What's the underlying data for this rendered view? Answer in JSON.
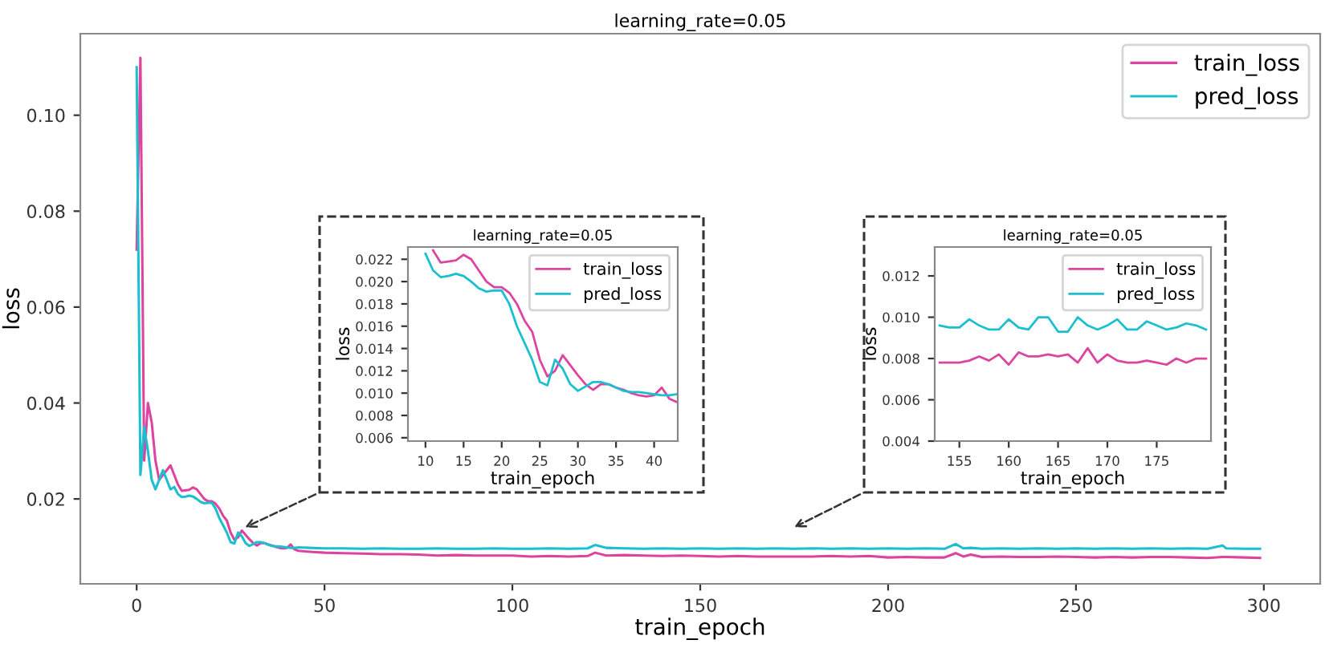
{
  "chart_data": [
    {
      "type": "line",
      "title": "learning_rate=0.05",
      "xlabel": "train_epoch",
      "ylabel": "loss",
      "legend": "top right",
      "grid": false,
      "x": [
        0,
        1,
        2,
        3,
        4,
        5,
        6,
        7,
        8,
        9,
        10,
        11,
        12,
        13,
        14,
        15,
        16,
        17,
        18,
        19,
        20,
        21,
        22,
        23,
        24,
        25,
        26,
        27,
        28,
        29,
        30,
        31,
        32,
        33,
        34,
        35,
        36,
        37,
        38,
        39,
        40,
        41,
        42,
        43,
        46,
        50,
        55,
        60,
        65,
        70,
        75,
        80,
        85,
        90,
        95,
        100,
        105,
        110,
        115,
        120,
        122,
        125,
        130,
        135,
        140,
        145,
        150,
        155,
        160,
        165,
        170,
        175,
        180,
        185,
        190,
        195,
        200,
        205,
        210,
        215,
        218,
        220,
        222,
        225,
        230,
        235,
        240,
        245,
        250,
        255,
        260,
        265,
        270,
        275,
        280,
        285,
        289,
        290,
        295,
        299
      ],
      "series": [
        {
          "name": "train_loss",
          "color": "#dc44a0",
          "values": [
            0.072,
            0.112,
            0.028,
            0.04,
            0.036,
            0.028,
            0.024,
            0.025,
            0.026,
            0.027,
            0.025,
            0.023,
            0.0217,
            0.0218,
            0.0219,
            0.0224,
            0.022,
            0.021,
            0.02,
            0.0195,
            0.0195,
            0.019,
            0.018,
            0.0165,
            0.0155,
            0.013,
            0.0115,
            0.012,
            0.0134,
            0.0125,
            0.0116,
            0.0108,
            0.0103,
            0.0108,
            0.0108,
            0.0105,
            0.0103,
            0.01,
            0.0098,
            0.0097,
            0.0098,
            0.0105,
            0.0095,
            0.0092,
            0.009,
            0.0088,
            0.0087,
            0.0086,
            0.0085,
            0.0085,
            0.0084,
            0.0082,
            0.0083,
            0.0082,
            0.0082,
            0.0082,
            0.008,
            0.0081,
            0.008,
            0.0081,
            0.0088,
            0.0082,
            0.0083,
            0.0082,
            0.0081,
            0.0082,
            0.0081,
            0.008,
            0.0081,
            0.008,
            0.008,
            0.008,
            0.008,
            0.0081,
            0.008,
            0.0081,
            0.0078,
            0.0079,
            0.0078,
            0.0078,
            0.0087,
            0.008,
            0.0084,
            0.0079,
            0.008,
            0.0079,
            0.0079,
            0.008,
            0.0079,
            0.0078,
            0.0079,
            0.0078,
            0.0079,
            0.0079,
            0.0078,
            0.0077,
            0.0079,
            0.0079,
            0.0078,
            0.0077
          ]
        },
        {
          "name": "pred_loss",
          "color": "#1cbfcf",
          "values": [
            0.11,
            0.025,
            0.035,
            0.03,
            0.024,
            0.022,
            0.024,
            0.026,
            0.024,
            0.022,
            0.0225,
            0.021,
            0.0204,
            0.0205,
            0.0207,
            0.0205,
            0.02,
            0.0194,
            0.0191,
            0.0192,
            0.0192,
            0.018,
            0.016,
            0.0145,
            0.013,
            0.011,
            0.0107,
            0.013,
            0.0122,
            0.0108,
            0.0102,
            0.0106,
            0.011,
            0.011,
            0.0108,
            0.0105,
            0.0102,
            0.0101,
            0.0101,
            0.01,
            0.0099,
            0.0098,
            0.0098,
            0.0099,
            0.0098,
            0.0097,
            0.0097,
            0.0096,
            0.0097,
            0.0096,
            0.0096,
            0.0097,
            0.0096,
            0.0096,
            0.0097,
            0.0096,
            0.0096,
            0.0097,
            0.0096,
            0.0097,
            0.0104,
            0.0098,
            0.0097,
            0.0096,
            0.0097,
            0.0096,
            0.0097,
            0.0096,
            0.0097,
            0.0096,
            0.0097,
            0.0096,
            0.0097,
            0.0096,
            0.0097,
            0.0096,
            0.0097,
            0.0096,
            0.0097,
            0.0096,
            0.0106,
            0.0097,
            0.0098,
            0.0096,
            0.0097,
            0.0096,
            0.0097,
            0.0096,
            0.0097,
            0.0096,
            0.0097,
            0.0096,
            0.0097,
            0.0096,
            0.0097,
            0.0096,
            0.0103,
            0.0097,
            0.0096,
            0.0096
          ]
        }
      ],
      "xlim": [
        -15,
        315
      ],
      "ylim": [
        0.0023,
        0.117
      ],
      "xticks": [
        0,
        50,
        100,
        150,
        200,
        250,
        300
      ],
      "yticks": [
        {
          "value": 0.02,
          "label": "0.02"
        },
        {
          "value": 0.04,
          "label": "0.04"
        },
        {
          "value": 0.06,
          "label": "0.06"
        },
        {
          "value": 0.08,
          "label": "0.08"
        },
        {
          "value": 0.1,
          "label": "0.10"
        }
      ]
    },
    {
      "type": "line",
      "title": "learning_rate=0.05",
      "xlabel": "train_epoch",
      "ylabel": "loss",
      "legend": "top right",
      "grid": false,
      "x": [
        10,
        11,
        12,
        13,
        14,
        15,
        16,
        17,
        18,
        19,
        20,
        21,
        22,
        23,
        24,
        25,
        26,
        27,
        28,
        29,
        30,
        31,
        32,
        33,
        34,
        35,
        36,
        37,
        38,
        39,
        40,
        41,
        42,
        43
      ],
      "series": [
        {
          "name": "train_loss",
          "color": "#dc44a0",
          "values": [
            null,
            0.0228,
            0.0217,
            0.0218,
            0.0219,
            0.0224,
            0.022,
            0.021,
            0.02,
            0.0195,
            0.0195,
            0.019,
            0.018,
            0.0165,
            0.0155,
            0.013,
            0.0115,
            0.012,
            0.0134,
            0.0125,
            0.0116,
            0.0108,
            0.0103,
            0.0108,
            0.0108,
            0.0105,
            0.0103,
            0.01,
            0.0098,
            0.0097,
            0.0098,
            0.0105,
            0.0095,
            0.0092
          ]
        },
        {
          "name": "pred_loss",
          "color": "#1cbfcf",
          "values": [
            0.0225,
            0.021,
            0.0204,
            0.0205,
            0.0207,
            0.0205,
            0.02,
            0.0194,
            0.0191,
            0.0192,
            0.0192,
            0.018,
            0.016,
            0.0145,
            0.013,
            0.011,
            0.0107,
            0.013,
            0.0122,
            0.0108,
            0.0102,
            0.0106,
            0.011,
            0.011,
            0.0108,
            0.0105,
            0.0102,
            0.0101,
            0.0101,
            0.01,
            0.0099,
            0.0098,
            0.0098,
            0.0099
          ]
        }
      ],
      "xlim": [
        7.7,
        43.1
      ],
      "ylim": [
        0.0057,
        0.0231
      ],
      "xticks": [
        10,
        15,
        20,
        25,
        30,
        35,
        40
      ],
      "yticks": [
        {
          "value": 0.006,
          "label": "0.006"
        },
        {
          "value": 0.008,
          "label": "0.008"
        },
        {
          "value": 0.01,
          "label": "0.010"
        },
        {
          "value": 0.012,
          "label": "0.012"
        },
        {
          "value": 0.014,
          "label": "0.014"
        },
        {
          "value": 0.016,
          "label": "0.016"
        },
        {
          "value": 0.018,
          "label": "0.018"
        },
        {
          "value": 0.02,
          "label": "0.020"
        },
        {
          "value": 0.022,
          "label": "0.022"
        }
      ]
    },
    {
      "type": "line",
      "title": "learning_rate=0.05",
      "xlabel": "train_epoch",
      "ylabel": "loss",
      "legend": "top right",
      "grid": false,
      "x": [
        153,
        154,
        155,
        156,
        157,
        158,
        159,
        160,
        161,
        162,
        163,
        164,
        165,
        166,
        167,
        168,
        169,
        170,
        171,
        172,
        173,
        174,
        175,
        176,
        177,
        178,
        179,
        180
      ],
      "series": [
        {
          "name": "train_loss",
          "color": "#dc44a0",
          "values": [
            0.0078,
            0.0078,
            0.0078,
            0.0079,
            0.0081,
            0.0079,
            0.0082,
            0.0077,
            0.0083,
            0.0081,
            0.0081,
            0.0082,
            0.0081,
            0.0082,
            0.0078,
            0.0085,
            0.0078,
            0.0082,
            0.0079,
            0.0078,
            0.0078,
            0.0079,
            0.0078,
            0.0077,
            0.008,
            0.0078,
            0.008,
            0.008
          ]
        },
        {
          "name": "pred_loss",
          "color": "#1cbfcf",
          "values": [
            0.0096,
            0.0095,
            0.0095,
            0.0099,
            0.0096,
            0.0094,
            0.0094,
            0.0099,
            0.0095,
            0.0094,
            0.01,
            0.01,
            0.0093,
            0.0093,
            0.01,
            0.0096,
            0.0094,
            0.0096,
            0.0099,
            0.0094,
            0.0094,
            0.0098,
            0.0096,
            0.0094,
            0.0095,
            0.0097,
            0.0096,
            0.0094
          ]
        }
      ],
      "xlim": [
        152.5,
        180.5
      ],
      "ylim": [
        0.004,
        0.0134
      ],
      "xticks": [
        155,
        160,
        165,
        170,
        175
      ],
      "yticks": [
        {
          "value": 0.004,
          "label": "0.004"
        },
        {
          "value": 0.006,
          "label": "0.006"
        },
        {
          "value": 0.008,
          "label": "0.008"
        },
        {
          "value": 0.01,
          "label": "0.010"
        },
        {
          "value": 0.012,
          "label": "0.012"
        }
      ]
    }
  ]
}
